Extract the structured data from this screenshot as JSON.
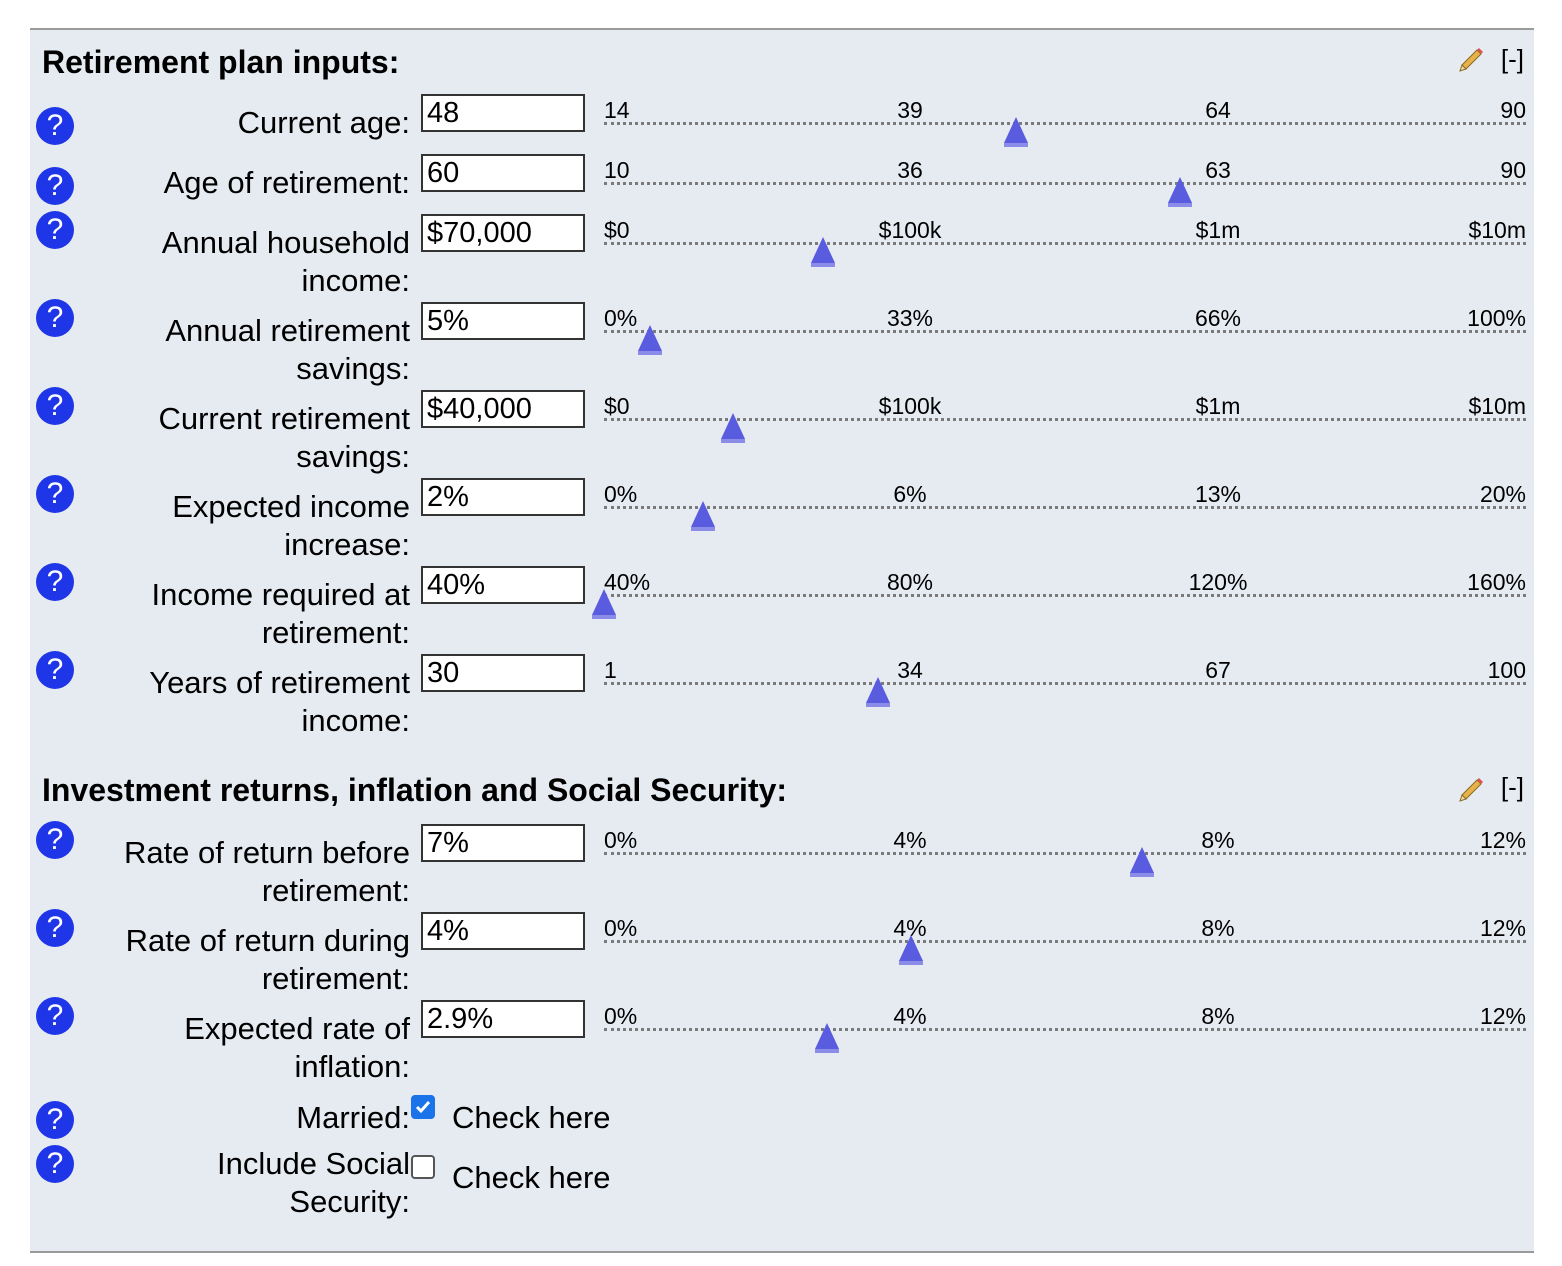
{
  "sections": [
    {
      "title": "Retirement plan inputs:",
      "collapse_label": "[-]",
      "edit_icon": "pencil-icon"
    },
    {
      "title": "Investment returns, inflation and Social Security:",
      "collapse_label": "[-]",
      "edit_icon": "pencil-icon"
    }
  ],
  "help_label": "?",
  "fields": [
    {
      "id": "current-age",
      "label": "Current age:",
      "value": "48",
      "ticks": [
        "14",
        "39",
        "64",
        "90"
      ],
      "slider": 0.447
    },
    {
      "id": "age-of-retirement",
      "label": "Age of retirement:",
      "value": "60",
      "ticks": [
        "10",
        "36",
        "63",
        "90"
      ],
      "slider": 0.625
    },
    {
      "id": "annual-household-income",
      "label": "Annual household income:",
      "value": "$70,000",
      "ticks": [
        "$0",
        "$100k",
        "$1m",
        "$10m"
      ],
      "slider": 0.237
    },
    {
      "id": "annual-retirement-savings",
      "label": "Annual retirement savings:",
      "value": "5%",
      "ticks": [
        "0%",
        "33%",
        "66%",
        "100%"
      ],
      "slider": 0.05
    },
    {
      "id": "current-retirement-savings",
      "label": "Current retirement savings:",
      "value": "$40,000",
      "ticks": [
        "$0",
        "$100k",
        "$1m",
        "$10m"
      ],
      "slider": 0.14
    },
    {
      "id": "expected-income-increase",
      "label": "Expected income increase:",
      "value": "2%",
      "ticks": [
        "0%",
        "6%",
        "13%",
        "20%"
      ],
      "slider": 0.107
    },
    {
      "id": "income-required-at-retirement",
      "label": "Income required at retirement:",
      "value": "40%",
      "ticks": [
        "40%",
        "80%",
        "120%",
        "160%"
      ],
      "slider": 0.0
    },
    {
      "id": "years-of-retirement-income",
      "label": "Years of retirement income:",
      "value": "30",
      "ticks": [
        "1",
        "34",
        "67",
        "100"
      ],
      "slider": 0.297
    },
    {
      "id": "rate-of-return-before-retirement",
      "label": "Rate of return before retirement:",
      "value": "7%",
      "ticks": [
        "0%",
        "4%",
        "8%",
        "12%"
      ],
      "slider": 0.583
    },
    {
      "id": "rate-of-return-during-retirement",
      "label": "Rate of return during retirement:",
      "value": "4%",
      "ticks": [
        "0%",
        "4%",
        "8%",
        "12%"
      ],
      "slider": 0.333
    },
    {
      "id": "expected-rate-of-inflation",
      "label": "Expected rate of inflation:",
      "value": "2.9%",
      "ticks": [
        "0%",
        "4%",
        "8%",
        "12%"
      ],
      "slider": 0.242
    }
  ],
  "checkboxes": [
    {
      "id": "married",
      "label": "Married:",
      "checked": true,
      "text": "Check here"
    },
    {
      "id": "include-social-security",
      "label": "Include Social Security:",
      "checked": false,
      "text": "Check here"
    }
  ]
}
